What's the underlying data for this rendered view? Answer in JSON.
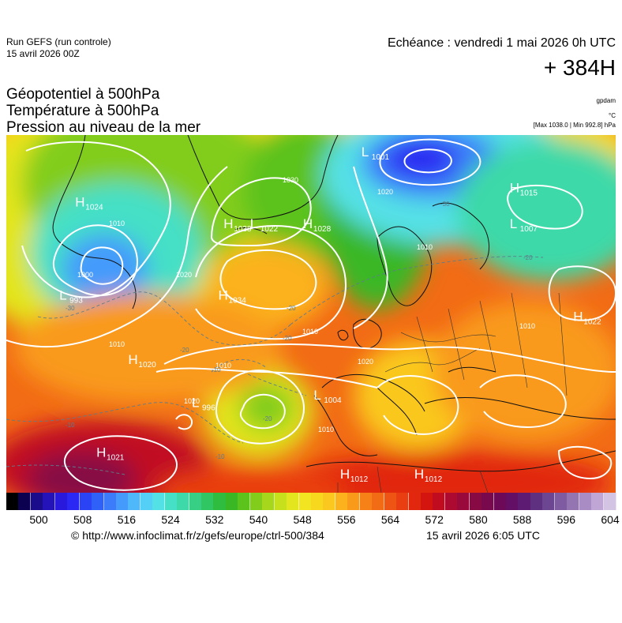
{
  "header": {
    "run_title": "Run GEFS (run controle)",
    "run_date": "15 avril 2026 00Z",
    "echeance": "Echéance : vendredi 1 mai 2026 0h UTC",
    "lead_time": "+ 384H"
  },
  "parameters": [
    "Géopotentiel à 500hPa",
    "Température à 500hPa",
    "Pression au niveau de la mer"
  ],
  "units": {
    "geopotential": "gpdam",
    "temperature": "°C",
    "pressure_range": "[Max 1038.0 | Min 992.8] hPa"
  },
  "pressure_centers": [
    {
      "type": "H",
      "value": "1024",
      "lon": -42,
      "lat": 68
    },
    {
      "type": "L",
      "value": "993",
      "lon": -45,
      "lat": 55
    },
    {
      "type": "H",
      "value": "1038",
      "lon": -14,
      "lat": 65
    },
    {
      "type": "L",
      "value": "1022",
      "lon": -9,
      "lat": 65
    },
    {
      "type": "H",
      "value": "1028",
      "lon": 1,
      "lat": 65
    },
    {
      "type": "L",
      "value": "1001",
      "lon": 12,
      "lat": 75
    },
    {
      "type": "H",
      "value": "1015",
      "lon": 40,
      "lat": 70
    },
    {
      "type": "L",
      "value": "1007",
      "lon": 40,
      "lat": 65
    },
    {
      "type": "H",
      "value": "1034",
      "lon": -15,
      "lat": 55
    },
    {
      "type": "H",
      "value": "1022",
      "lon": 52,
      "lat": 52
    },
    {
      "type": "H",
      "value": "1020",
      "lon": -32,
      "lat": 46
    },
    {
      "type": "L",
      "value": "996",
      "lon": -20,
      "lat": 40
    },
    {
      "type": "L",
      "value": "1004",
      "lon": 3,
      "lat": 41
    },
    {
      "type": "H",
      "value": "1021",
      "lon": -38,
      "lat": 33
    },
    {
      "type": "H",
      "value": "1012",
      "lon": 22,
      "lat": 30
    },
    {
      "type": "H",
      "value": "1012",
      "lon": 8,
      "lat": 30
    }
  ],
  "isobar_labels": [
    "1000",
    "1010",
    "1020",
    "1030",
    "1010",
    "1020",
    "1010",
    "1010",
    "1020",
    "1010",
    "1010",
    "1020",
    "1010"
  ],
  "temperature_labels": [
    "-30",
    "-20",
    "-20",
    "-20",
    "-20",
    "-10",
    "-10",
    "-10",
    "-20",
    "-30"
  ],
  "colorbar": {
    "colors": [
      "#000000",
      "#0c0050",
      "#1b0c8c",
      "#2313b9",
      "#2919dc",
      "#2a28f2",
      "#2a43f5",
      "#2f60f8",
      "#3c7bfa",
      "#449bfb",
      "#4fb8fb",
      "#54d0f6",
      "#54e1e6",
      "#45e0c6",
      "#3ed9a8",
      "#36cf83",
      "#30c763",
      "#2fbd3f",
      "#3ab725",
      "#5cc21c",
      "#82cd1b",
      "#a6d71c",
      "#c7e01d",
      "#e3e51f",
      "#f2e420",
      "#f8d81f",
      "#fac81e",
      "#fbb21c",
      "#f99a1a",
      "#f68117",
      "#f26b15",
      "#ee5413",
      "#e93e11",
      "#e1280f",
      "#d4150f",
      "#c10c20",
      "#ad0a32",
      "#99093c",
      "#870a45",
      "#78094d",
      "#6c0a58",
      "#640f66",
      "#5e1b73",
      "#603080",
      "#6c4690",
      "#7f5ca1",
      "#9574b2",
      "#aa8cc4",
      "#bfa6d4",
      "#d4c4e4"
    ],
    "tick_labels": [
      "500",
      "508",
      "516",
      "524",
      "532",
      "540",
      "548",
      "556",
      "564",
      "572",
      "580",
      "588",
      "596",
      "604"
    ],
    "tick_values": [
      500,
      508,
      516,
      524,
      532,
      540,
      548,
      556,
      564,
      572,
      580,
      588,
      596,
      604
    ],
    "value_min": 500,
    "value_max": 604
  },
  "footer": {
    "copyright": "© http://www.infoclimat.fr/z/gefs/europe/ctrl-500/384",
    "generated": "15 avril 2026  6:05 UTC"
  }
}
